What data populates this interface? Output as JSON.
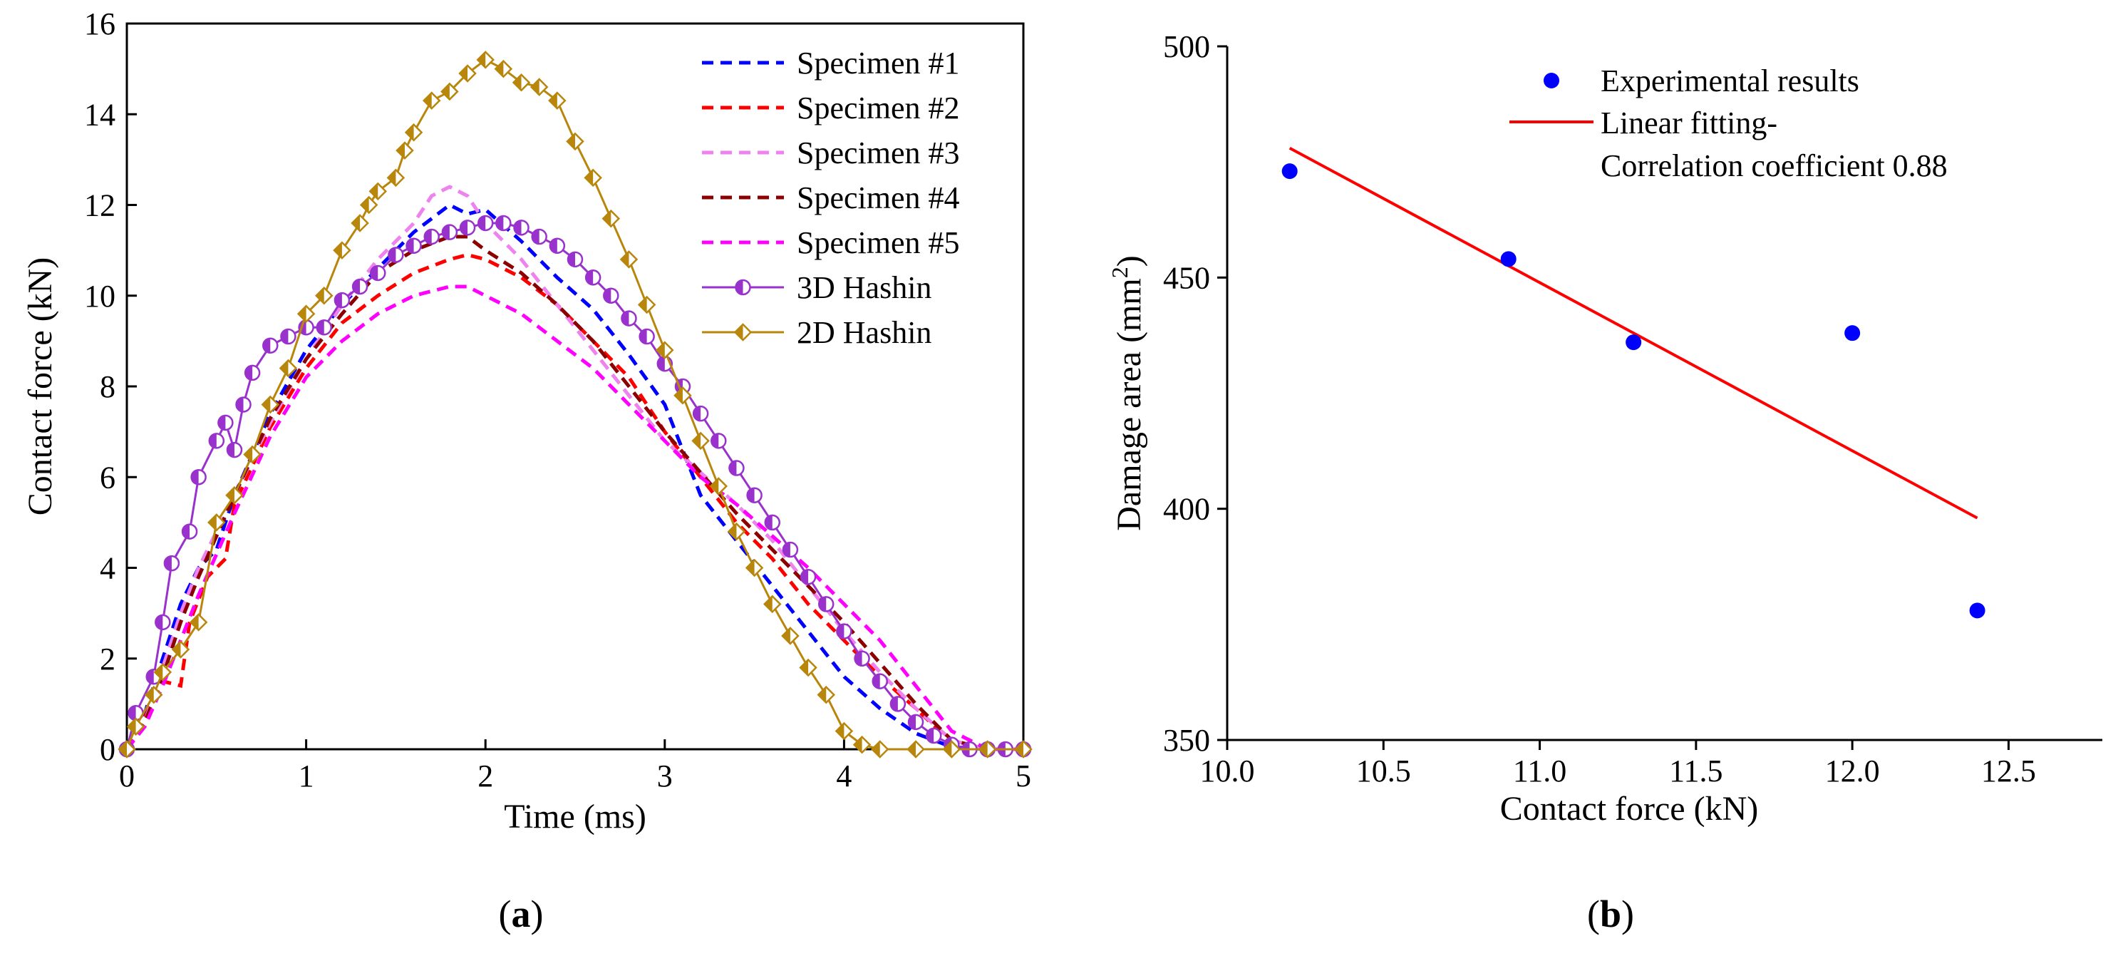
{
  "chart_data": [
    {
      "panel_label": "a",
      "type": "line",
      "xlabel": "Time (ms)",
      "ylabel": "Contact force (kN)",
      "xlim": [
        0,
        5
      ],
      "ylim": [
        0,
        16
      ],
      "xticks": [
        0,
        1,
        2,
        3,
        4,
        5
      ],
      "yticks": [
        0,
        2,
        4,
        6,
        8,
        10,
        12,
        14,
        16
      ],
      "grid": false,
      "legend_position": "top-right",
      "series": [
        {
          "name": "Specimen #1",
          "color": "#0000ff",
          "dash": true,
          "marker": "none",
          "points": [
            [
              0,
              0
            ],
            [
              0.1,
              0.8
            ],
            [
              0.2,
              2.0
            ],
            [
              0.3,
              3.2
            ],
            [
              0.4,
              4.0
            ],
            [
              0.5,
              4.4
            ],
            [
              0.6,
              5.6
            ],
            [
              0.8,
              7.4
            ],
            [
              1.0,
              8.8
            ],
            [
              1.2,
              9.8
            ],
            [
              1.4,
              10.6
            ],
            [
              1.6,
              11.4
            ],
            [
              1.8,
              12.0
            ],
            [
              1.9,
              11.8
            ],
            [
              2.0,
              11.9
            ],
            [
              2.2,
              11.2
            ],
            [
              2.4,
              10.4
            ],
            [
              2.6,
              9.7
            ],
            [
              2.8,
              8.7
            ],
            [
              3.0,
              7.6
            ],
            [
              3.2,
              5.6
            ],
            [
              3.4,
              4.6
            ],
            [
              3.6,
              3.6
            ],
            [
              3.8,
              2.6
            ],
            [
              4.0,
              1.6
            ],
            [
              4.2,
              0.9
            ],
            [
              4.4,
              0.35
            ],
            [
              4.6,
              0.05
            ],
            [
              4.8,
              0
            ],
            [
              5.0,
              0
            ]
          ]
        },
        {
          "name": "Specimen #2",
          "color": "#ff0000",
          "dash": true,
          "marker": "none",
          "points": [
            [
              0,
              0
            ],
            [
              0.1,
              0.7
            ],
            [
              0.2,
              1.5
            ],
            [
              0.3,
              1.4
            ],
            [
              0.35,
              2.8
            ],
            [
              0.45,
              3.8
            ],
            [
              0.55,
              4.2
            ],
            [
              0.6,
              5.4
            ],
            [
              0.8,
              7.1
            ],
            [
              1.0,
              8.4
            ],
            [
              1.2,
              9.4
            ],
            [
              1.4,
              10.0
            ],
            [
              1.6,
              10.5
            ],
            [
              1.8,
              10.8
            ],
            [
              1.9,
              10.9
            ],
            [
              2.0,
              10.8
            ],
            [
              2.2,
              10.4
            ],
            [
              2.4,
              9.8
            ],
            [
              2.6,
              9.0
            ],
            [
              2.8,
              8.2
            ],
            [
              3.0,
              7.0
            ],
            [
              3.2,
              6.0
            ],
            [
              3.4,
              5.0
            ],
            [
              3.6,
              4.2
            ],
            [
              3.8,
              3.2
            ],
            [
              4.0,
              2.4
            ],
            [
              4.2,
              1.6
            ],
            [
              4.4,
              0.9
            ],
            [
              4.6,
              0.15
            ],
            [
              4.8,
              0
            ],
            [
              5.0,
              0
            ]
          ]
        },
        {
          "name": "Specimen #3",
          "color": "#ee82ee",
          "dash": true,
          "marker": "none",
          "points": [
            [
              0,
              0
            ],
            [
              0.1,
              0.6
            ],
            [
              0.2,
              1.8
            ],
            [
              0.3,
              3.0
            ],
            [
              0.4,
              4.0
            ],
            [
              0.6,
              5.6
            ],
            [
              0.8,
              7.2
            ],
            [
              1.0,
              8.6
            ],
            [
              1.2,
              9.8
            ],
            [
              1.4,
              10.8
            ],
            [
              1.6,
              11.6
            ],
            [
              1.7,
              12.2
            ],
            [
              1.8,
              12.4
            ],
            [
              1.9,
              12.2
            ],
            [
              2.0,
              11.6
            ],
            [
              2.2,
              10.8
            ],
            [
              2.4,
              9.8
            ],
            [
              2.6,
              8.8
            ],
            [
              2.8,
              7.8
            ],
            [
              3.0,
              6.8
            ],
            [
              3.2,
              6.1
            ],
            [
              3.4,
              5.4
            ],
            [
              3.6,
              4.6
            ],
            [
              3.8,
              3.6
            ],
            [
              4.0,
              2.6
            ],
            [
              4.2,
              1.7
            ],
            [
              4.4,
              0.9
            ],
            [
              4.6,
              0.2
            ],
            [
              4.8,
              0
            ],
            [
              5.0,
              0
            ]
          ]
        },
        {
          "name": "Specimen #4",
          "color": "#8b0000",
          "dash": true,
          "marker": "none",
          "points": [
            [
              0,
              0
            ],
            [
              0.1,
              0.6
            ],
            [
              0.2,
              1.6
            ],
            [
              0.3,
              2.8
            ],
            [
              0.4,
              3.8
            ],
            [
              0.6,
              5.6
            ],
            [
              0.8,
              7.3
            ],
            [
              1.0,
              8.6
            ],
            [
              1.2,
              9.6
            ],
            [
              1.4,
              10.5
            ],
            [
              1.6,
              11.0
            ],
            [
              1.8,
              11.3
            ],
            [
              1.9,
              11.3
            ],
            [
              2.0,
              11.0
            ],
            [
              2.2,
              10.5
            ],
            [
              2.4,
              9.8
            ],
            [
              2.6,
              9.0
            ],
            [
              2.8,
              8.0
            ],
            [
              3.0,
              7.0
            ],
            [
              3.2,
              6.1
            ],
            [
              3.4,
              5.2
            ],
            [
              3.6,
              4.4
            ],
            [
              3.8,
              3.6
            ],
            [
              4.0,
              2.8
            ],
            [
              4.2,
              1.9
            ],
            [
              4.4,
              1.0
            ],
            [
              4.6,
              0.2
            ],
            [
              4.8,
              0
            ],
            [
              5.0,
              0
            ]
          ]
        },
        {
          "name": "Specimen #5",
          "color": "#ff00ff",
          "dash": true,
          "marker": "none",
          "points": [
            [
              0,
              0
            ],
            [
              0.1,
              0.5
            ],
            [
              0.2,
              1.4
            ],
            [
              0.3,
              2.4
            ],
            [
              0.4,
              3.4
            ],
            [
              0.6,
              5.2
            ],
            [
              0.8,
              6.9
            ],
            [
              1.0,
              8.2
            ],
            [
              1.2,
              9.0
            ],
            [
              1.4,
              9.6
            ],
            [
              1.6,
              10.0
            ],
            [
              1.8,
              10.2
            ],
            [
              1.9,
              10.2
            ],
            [
              2.0,
              10.0
            ],
            [
              2.2,
              9.6
            ],
            [
              2.4,
              9.0
            ],
            [
              2.6,
              8.4
            ],
            [
              2.8,
              7.6
            ],
            [
              3.0,
              6.8
            ],
            [
              3.2,
              6.0
            ],
            [
              3.4,
              5.4
            ],
            [
              3.6,
              4.7
            ],
            [
              3.8,
              4.0
            ],
            [
              4.0,
              3.2
            ],
            [
              4.2,
              2.4
            ],
            [
              4.4,
              1.4
            ],
            [
              4.6,
              0.4
            ],
            [
              4.8,
              0
            ],
            [
              5.0,
              0
            ]
          ]
        },
        {
          "name": "3D Hashin",
          "color": "#9932cc",
          "dash": false,
          "marker": "half-circle",
          "points": [
            [
              0,
              0
            ],
            [
              0.05,
              0.8
            ],
            [
              0.15,
              1.6
            ],
            [
              0.2,
              2.8
            ],
            [
              0.25,
              4.1
            ],
            [
              0.35,
              4.8
            ],
            [
              0.4,
              6.0
            ],
            [
              0.5,
              6.8
            ],
            [
              0.55,
              7.2
            ],
            [
              0.6,
              6.6
            ],
            [
              0.65,
              7.6
            ],
            [
              0.7,
              8.3
            ],
            [
              0.8,
              8.9
            ],
            [
              0.9,
              9.1
            ],
            [
              1.0,
              9.3
            ],
            [
              1.1,
              9.3
            ],
            [
              1.2,
              9.9
            ],
            [
              1.3,
              10.2
            ],
            [
              1.4,
              10.5
            ],
            [
              1.5,
              10.9
            ],
            [
              1.6,
              11.1
            ],
            [
              1.7,
              11.3
            ],
            [
              1.8,
              11.4
            ],
            [
              1.9,
              11.5
            ],
            [
              2.0,
              11.6
            ],
            [
              2.1,
              11.6
            ],
            [
              2.2,
              11.5
            ],
            [
              2.3,
              11.3
            ],
            [
              2.4,
              11.1
            ],
            [
              2.5,
              10.8
            ],
            [
              2.6,
              10.4
            ],
            [
              2.7,
              10.0
            ],
            [
              2.8,
              9.5
            ],
            [
              2.9,
              9.1
            ],
            [
              3.0,
              8.5
            ],
            [
              3.1,
              8.0
            ],
            [
              3.2,
              7.4
            ],
            [
              3.3,
              6.8
            ],
            [
              3.4,
              6.2
            ],
            [
              3.5,
              5.6
            ],
            [
              3.6,
              5.0
            ],
            [
              3.7,
              4.4
            ],
            [
              3.8,
              3.8
            ],
            [
              3.9,
              3.2
            ],
            [
              4.0,
              2.6
            ],
            [
              4.1,
              2.0
            ],
            [
              4.2,
              1.5
            ],
            [
              4.3,
              1.0
            ],
            [
              4.4,
              0.6
            ],
            [
              4.5,
              0.3
            ],
            [
              4.6,
              0.1
            ],
            [
              4.7,
              0
            ],
            [
              4.8,
              0
            ],
            [
              4.9,
              0
            ],
            [
              5.0,
              0
            ]
          ]
        },
        {
          "name": "2D Hashin",
          "color": "#b8860b",
          "dash": false,
          "marker": "diamond",
          "points": [
            [
              0,
              0
            ],
            [
              0.05,
              0.5
            ],
            [
              0.15,
              1.2
            ],
            [
              0.2,
              1.7
            ],
            [
              0.3,
              2.2
            ],
            [
              0.4,
              2.8
            ],
            [
              0.5,
              5.0
            ],
            [
              0.6,
              5.6
            ],
            [
              0.7,
              6.5
            ],
            [
              0.8,
              7.6
            ],
            [
              0.9,
              8.4
            ],
            [
              1.0,
              9.6
            ],
            [
              1.1,
              10.0
            ],
            [
              1.2,
              11.0
            ],
            [
              1.3,
              11.6
            ],
            [
              1.35,
              12.0
            ],
            [
              1.4,
              12.3
            ],
            [
              1.5,
              12.6
            ],
            [
              1.55,
              13.2
            ],
            [
              1.6,
              13.6
            ],
            [
              1.7,
              14.3
            ],
            [
              1.8,
              14.5
            ],
            [
              1.9,
              14.9
            ],
            [
              2.0,
              15.2
            ],
            [
              2.1,
              15.0
            ],
            [
              2.2,
              14.7
            ],
            [
              2.3,
              14.6
            ],
            [
              2.4,
              14.3
            ],
            [
              2.5,
              13.4
            ],
            [
              2.6,
              12.6
            ],
            [
              2.7,
              11.7
            ],
            [
              2.8,
              10.8
            ],
            [
              2.9,
              9.8
            ],
            [
              3.0,
              8.8
            ],
            [
              3.1,
              7.8
            ],
            [
              3.2,
              6.8
            ],
            [
              3.3,
              5.8
            ],
            [
              3.4,
              4.8
            ],
            [
              3.5,
              4.0
            ],
            [
              3.6,
              3.2
            ],
            [
              3.7,
              2.5
            ],
            [
              3.8,
              1.8
            ],
            [
              3.9,
              1.2
            ],
            [
              4.0,
              0.4
            ],
            [
              4.1,
              0.1
            ],
            [
              4.2,
              0
            ],
            [
              4.4,
              0
            ],
            [
              4.6,
              0
            ],
            [
              4.8,
              0
            ],
            [
              5.0,
              0
            ]
          ]
        }
      ]
    },
    {
      "panel_label": "b",
      "type": "scatter",
      "xlabel": "Contact force (kN)",
      "ylabel": "Damage area (mm",
      "ylabel_sup": "2",
      "ylabel_close": ")",
      "xlim": [
        10.0,
        12.8
      ],
      "ylim": [
        350,
        500
      ],
      "xticks": [
        10.0,
        10.5,
        11.0,
        11.5,
        12.0,
        12.5
      ],
      "xtick_labels": [
        "10.0",
        "10.5",
        "11.0",
        "11.5",
        "12.0",
        "12.5"
      ],
      "yticks": [
        350,
        400,
        450,
        500
      ],
      "grid": false,
      "legend_position": "top-right",
      "series": [
        {
          "name": "Experimental results",
          "color": "#0000ff",
          "kind": "points",
          "x": [
            10.2,
            10.9,
            11.3,
            12.0,
            12.4
          ],
          "y": [
            473,
            454,
            436,
            438,
            378
          ]
        },
        {
          "name": "Linear fitting-",
          "name_line2": "Correlation coefficient 0.88",
          "color": "#ff0000",
          "kind": "line",
          "x": [
            10.2,
            12.4
          ],
          "y": [
            478,
            398
          ]
        }
      ]
    }
  ]
}
